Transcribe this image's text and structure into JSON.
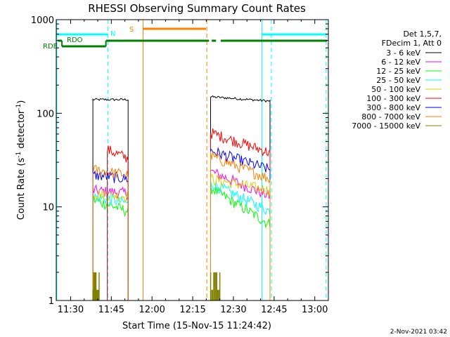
{
  "chart_data": {
    "type": "line",
    "title": "RHESSI Observing Summary Count Rates",
    "xlabel": "Start Time (15-Nov-15 11:24:42)",
    "ylabel_main": "Count Rate (s",
    "ylabel_sup1": "-1",
    "ylabel_mid": " detector",
    "ylabel_sup2": "-1",
    "ylabel_end": ")",
    "yscale": "log",
    "ylim": [
      1,
      1000
    ],
    "xlim_minutes": [
      684.7,
      785
    ],
    "xticks": [
      {
        "label": "11:30",
        "minutes": 690
      },
      {
        "label": "11:45",
        "minutes": 705
      },
      {
        "label": "12:00",
        "minutes": 720
      },
      {
        "label": "12:15",
        "minutes": 735
      },
      {
        "label": "12:30",
        "minutes": 750
      },
      {
        "label": "12:45",
        "minutes": 765
      },
      {
        "label": "13:00",
        "minutes": 780
      }
    ],
    "yticks": [
      {
        "label": "1",
        "value": 1
      },
      {
        "label": "10",
        "value": 10
      },
      {
        "label": "100",
        "value": 100
      },
      {
        "label": "1000",
        "value": 1000
      }
    ],
    "legend_header": [
      "Det 1,5,7,",
      "FDecim 1, Att 0"
    ],
    "series": [
      {
        "name": "3 - 6 keV",
        "color": "#000000",
        "segments": [
          {
            "t0": 698.2,
            "t1": 711.2,
            "v0": 140,
            "v1": 140
          },
          {
            "t0": 741.6,
            "t1": 763.5,
            "v0": 150,
            "v1": 135
          }
        ]
      },
      {
        "name": "6 - 12 keV",
        "color": "#ff00ff",
        "segments": [
          {
            "t0": 698.2,
            "t1": 711.2,
            "v0": 15,
            "v1": 14
          },
          {
            "t0": 741.6,
            "t1": 763.5,
            "v0": 24,
            "v1": 13
          }
        ]
      },
      {
        "name": "12 - 25 keV",
        "color": "#00ff00",
        "segments": [
          {
            "t0": 698.2,
            "t1": 711.2,
            "v0": 12,
            "v1": 9
          },
          {
            "t0": 741.6,
            "t1": 763.5,
            "v0": 16,
            "v1": 6.5
          }
        ]
      },
      {
        "name": "25 - 50 keV",
        "color": "#00ffff",
        "segments": [
          {
            "t0": 698.2,
            "t1": 711.2,
            "v0": 13,
            "v1": 11
          },
          {
            "t0": 741.6,
            "t1": 763.5,
            "v0": 18,
            "v1": 9
          }
        ]
      },
      {
        "name": "50 - 100 keV",
        "color": "#d4d400",
        "segments": [
          {
            "t0": 698.2,
            "t1": 711.2,
            "v0": 14,
            "v1": 13
          },
          {
            "t0": 741.6,
            "t1": 763.5,
            "v0": 20,
            "v1": 15
          }
        ]
      },
      {
        "name": "100 - 300 keV",
        "color": "#ff0000",
        "segments": [
          {
            "t0": 703.5,
            "t1": 711.2,
            "v0": 41,
            "v1": 33
          },
          {
            "t0": 741.6,
            "t1": 763.5,
            "v0": 62,
            "v1": 38
          }
        ]
      },
      {
        "name": "300 - 800 keV",
        "color": "#0000ff",
        "segments": [
          {
            "t0": 698.2,
            "t1": 711.2,
            "v0": 22,
            "v1": 20
          },
          {
            "t0": 741.6,
            "t1": 763.5,
            "v0": 40,
            "v1": 25
          }
        ]
      },
      {
        "name": "800 - 7000 keV",
        "color": "#ff8000",
        "segments": [
          {
            "t0": 698.2,
            "t1": 711.2,
            "v0": 25,
            "v1": 22
          },
          {
            "t0": 741.6,
            "t1": 763.5,
            "v0": 35,
            "v1": 20
          }
        ]
      },
      {
        "name": "7000 - 15000 keV",
        "color": "#808000",
        "segments": [
          {
            "t0": 698.2,
            "t1": 700.5,
            "v0": 1.5,
            "v1": 1.5
          },
          {
            "t0": 741.6,
            "t1": 745.0,
            "v0": 1.5,
            "v1": 1.5
          }
        ]
      }
    ],
    "status_bars": [
      {
        "label": "RDO",
        "color": "#008000",
        "segments": [
          {
            "t0": 685.3,
            "t1": 686.8
          },
          {
            "t0": 686.8,
            "t1": 703.0
          },
          {
            "t0": 703.0,
            "t1": 741.0
          },
          {
            "t0": 742.0,
            "t1": 743.6
          },
          {
            "t0": 745.3,
            "t1": 784.5
          }
        ]
      },
      {
        "label": "N",
        "color": "#00ffff",
        "segments": [
          {
            "t0": 684.7,
            "t1": 703.8
          },
          {
            "t0": 760.5,
            "t1": 784.5
          }
        ]
      },
      {
        "label": "S",
        "color": "#ff8000",
        "segments": [
          {
            "t0": 716.7,
            "t1": 739.9
          }
        ]
      }
    ],
    "event_lines": [
      {
        "minutes": 684.9,
        "color": "#00ffff",
        "style": "solid"
      },
      {
        "minutes": 703.8,
        "color": "#00ffff",
        "style": "dashed"
      },
      {
        "minutes": 716.7,
        "color": "#ff8000",
        "style": "solid"
      },
      {
        "minutes": 740.2,
        "color": "#ff8000",
        "style": "dashed"
      },
      {
        "minutes": 760.5,
        "color": "#00ffff",
        "style": "solid"
      },
      {
        "minutes": 764.0,
        "color": "#00ffff",
        "style": "dashed"
      },
      {
        "minutes": 784.2,
        "color": "#00ffff",
        "style": "dashed"
      }
    ],
    "footer": "2-Nov-2021 03:42"
  }
}
